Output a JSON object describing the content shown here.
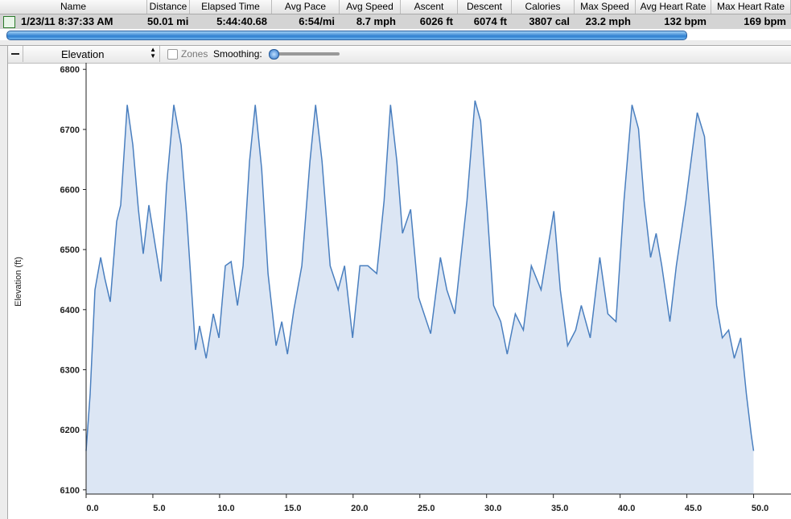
{
  "table": {
    "columns": [
      "Name",
      "Distance",
      "Elapsed Time",
      "Avg Pace",
      "Avg Speed",
      "Ascent",
      "Descent",
      "Calories",
      "Max Speed",
      "Avg Heart Rate",
      "Max Heart Rate"
    ],
    "rows": [
      [
        "1/23/11 8:37:33 AM",
        "50.01 mi",
        "5:44:40.68",
        "6:54/mi",
        "8.7 mph",
        "6026 ft",
        "6074 ft",
        "3807 cal",
        "23.2 mph",
        "132 bpm",
        "169 bpm"
      ]
    ]
  },
  "toolbar": {
    "dropdown": "Elevation",
    "checkbox": "Zones",
    "slider_label": "Smoothing:"
  },
  "chart_data": {
    "type": "area",
    "ylabel": "Elevation (ft)",
    "color": "#4a7fbf",
    "fill": "#dce6f4",
    "series": [
      {
        "name": "Elevation",
        "x": [
          0,
          0.3,
          0.66,
          1.09,
          1.39,
          1.81,
          2.29,
          2.59,
          3.08,
          3.5,
          3.92,
          4.28,
          4.7,
          5.13,
          5.61,
          6.03,
          6.57,
          7.12,
          7.54,
          8.2,
          8.5,
          8.99,
          9.53,
          9.95,
          10.43,
          10.86,
          11.34,
          11.76,
          12.24,
          12.67,
          13.15,
          13.63,
          14.23,
          14.66,
          15.08,
          15.56,
          16.16,
          16.77,
          17.19,
          17.67,
          18.28,
          18.88,
          19.36,
          19.96,
          20.51,
          21.11,
          21.77,
          22.32,
          22.8,
          23.28,
          23.7,
          24.31,
          24.91,
          25.81,
          26.54,
          27.02,
          27.62,
          28.53,
          29.13,
          29.55,
          30.04,
          30.52,
          31.06,
          31.54,
          32.15,
          32.75,
          33.35,
          34.08,
          34.56,
          35.04,
          35.52,
          36.07,
          36.67,
          37.09,
          37.76,
          38.48,
          39.08,
          39.69,
          40.29,
          40.89,
          41.38,
          41.8,
          42.28,
          42.7,
          43.12,
          43.73,
          44.21,
          44.93,
          45.78,
          46.32,
          46.8,
          47.23,
          47.65,
          48.13,
          48.55,
          49.03,
          49.46,
          49.82,
          50.0
        ],
        "values": [
          6165,
          6259,
          6433,
          6487,
          6453,
          6413,
          6547,
          6574,
          6741,
          6674,
          6567,
          6493,
          6574,
          6514,
          6447,
          6607,
          6741,
          6674,
          6554,
          6333,
          6373,
          6319,
          6393,
          6353,
          6473,
          6480,
          6407,
          6473,
          6647,
          6741,
          6634,
          6460,
          6340,
          6380,
          6326,
          6400,
          6473,
          6647,
          6741,
          6647,
          6473,
          6433,
          6473,
          6353,
          6473,
          6473,
          6460,
          6581,
          6741,
          6647,
          6527,
          6567,
          6420,
          6360,
          6487,
          6433,
          6393,
          6581,
          6748,
          6714,
          6567,
          6407,
          6380,
          6326,
          6393,
          6366,
          6473,
          6433,
          6500,
          6564,
          6433,
          6340,
          6366,
          6407,
          6353,
          6487,
          6393,
          6380,
          6581,
          6741,
          6701,
          6581,
          6487,
          6527,
          6473,
          6380,
          6473,
          6581,
          6728,
          6688,
          6540,
          6407,
          6353,
          6366,
          6319,
          6353,
          6259,
          6192,
          6165
        ]
      }
    ],
    "xlim": [
      0,
      52.8
    ],
    "ylim": [
      6093,
      6811
    ],
    "xticks": [
      {
        "value": 0,
        "label": "0.0"
      },
      {
        "value": 5,
        "label": "5.0"
      },
      {
        "value": 10,
        "label": "10.0"
      },
      {
        "value": 15,
        "label": "15.0"
      },
      {
        "value": 20,
        "label": "20.0"
      },
      {
        "value": 25,
        "label": "25.0"
      },
      {
        "value": 30,
        "label": "30.0"
      },
      {
        "value": 35,
        "label": "35.0"
      },
      {
        "value": 40,
        "label": "40.0"
      },
      {
        "value": 45,
        "label": "45.0"
      },
      {
        "value": 50,
        "label": "50.0"
      }
    ],
    "yticks": [
      6100,
      6200,
      6300,
      6400,
      6500,
      6600,
      6700,
      6800
    ]
  }
}
